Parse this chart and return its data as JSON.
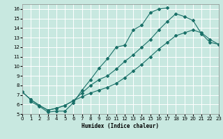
{
  "xlabel": "Humidex (Indice chaleur)",
  "xlim": [
    0,
    23
  ],
  "ylim": [
    5,
    16.5
  ],
  "xticks": [
    0,
    1,
    2,
    3,
    4,
    5,
    6,
    7,
    8,
    9,
    10,
    11,
    12,
    13,
    14,
    15,
    16,
    17,
    18,
    19,
    20,
    21,
    22,
    23
  ],
  "yticks": [
    5,
    6,
    7,
    8,
    9,
    10,
    11,
    12,
    13,
    14,
    15,
    16
  ],
  "bg_color": "#c8e8e0",
  "line_color": "#1a7068",
  "grid_color": "#ffffff",
  "line1_x": [
    1,
    2,
    3,
    4,
    5,
    6,
    7,
    8,
    9,
    10,
    11,
    12,
    13,
    14,
    15,
    16,
    17
  ],
  "line1_y": [
    6.3,
    5.8,
    5.2,
    5.3,
    5.3,
    6.2,
    7.5,
    8.6,
    9.8,
    10.8,
    12.0,
    12.2,
    13.8,
    14.3,
    15.6,
    16.0,
    16.1
  ],
  "line2_x": [
    0,
    1,
    2,
    3,
    4,
    5,
    6,
    7,
    8,
    9,
    10,
    11,
    12,
    13,
    14,
    15,
    16,
    17,
    18,
    19,
    20,
    21,
    22,
    23
  ],
  "line2_y": [
    7.3,
    6.5,
    5.9,
    5.4,
    5.6,
    5.9,
    6.4,
    7.2,
    8.0,
    8.6,
    9.0,
    9.7,
    10.5,
    11.2,
    12.0,
    12.8,
    13.8,
    14.7,
    15.5,
    15.2,
    14.8,
    13.4,
    12.5,
    12.3
  ],
  "line3_x": [
    0,
    1,
    2,
    3,
    4,
    5,
    6,
    7,
    8,
    9,
    10,
    11,
    12,
    13,
    14,
    15,
    16,
    17,
    18,
    19,
    20,
    21,
    22,
    23
  ],
  "line3_y": [
    7.3,
    6.5,
    5.9,
    5.4,
    5.6,
    5.9,
    6.4,
    6.8,
    7.2,
    7.5,
    7.8,
    8.2,
    8.8,
    9.5,
    10.2,
    11.0,
    11.8,
    12.5,
    13.2,
    13.5,
    13.8,
    13.5,
    12.8,
    12.3
  ]
}
